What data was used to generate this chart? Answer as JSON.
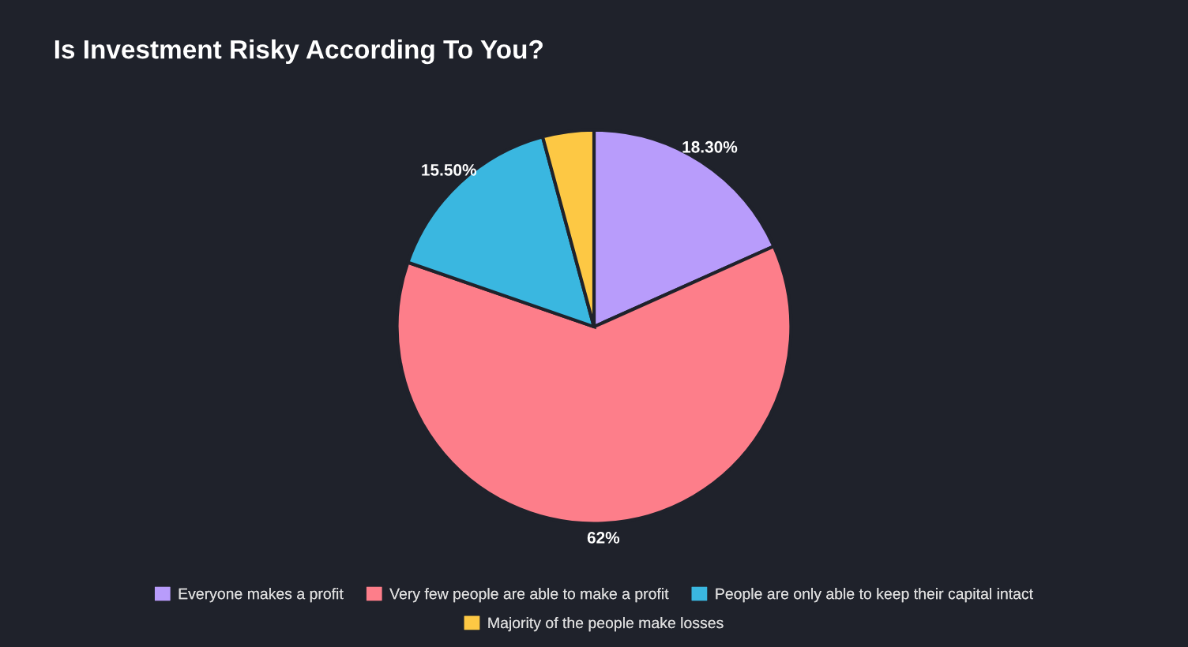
{
  "chart_data": {
    "type": "pie",
    "title": "Is Investment Risky According To You?",
    "categories": [
      "Everyone makes a profit",
      "Very few people are able to make a profit",
      "People are only able to keep their capital intact",
      "Majority of the people make losses"
    ],
    "values": [
      18.3,
      62,
      15.5,
      4.2
    ],
    "value_labels": [
      "18.30%",
      "62%",
      "15.50%",
      null
    ],
    "colors": [
      "#b89cfb",
      "#fd7e8a",
      "#3ab7e0",
      "#fdc844"
    ],
    "legend": "bottom"
  }
}
